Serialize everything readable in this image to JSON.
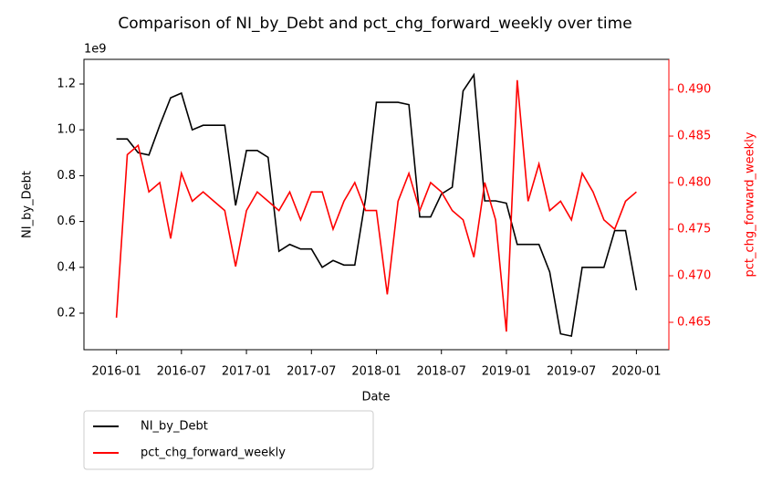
{
  "chart_data": {
    "type": "line",
    "title": "Comparison of NI_by_Debt and pct_chg_forward_weekly over time",
    "x_label": "Date",
    "y_label": "NI_by_Debt",
    "y2_label": "pct_chg_forward_weekly",
    "y_offset_label": "1e9",
    "x": [
      "2016-01",
      "2016-02",
      "2016-03",
      "2016-04",
      "2016-05",
      "2016-06",
      "2016-07",
      "2016-08",
      "2016-09",
      "2016-10",
      "2016-11",
      "2016-12",
      "2017-01",
      "2017-02",
      "2017-03",
      "2017-04",
      "2017-05",
      "2017-06",
      "2017-07",
      "2017-08",
      "2017-09",
      "2017-10",
      "2017-11",
      "2017-12",
      "2018-01",
      "2018-02",
      "2018-03",
      "2018-04",
      "2018-05",
      "2018-06",
      "2018-07",
      "2018-08",
      "2018-09",
      "2018-10",
      "2018-11",
      "2018-12",
      "2019-01",
      "2019-02",
      "2019-03",
      "2019-04",
      "2019-05",
      "2019-06",
      "2019-07",
      "2019-08",
      "2019-09",
      "2019-10",
      "2019-11",
      "2019-12",
      "2020-01"
    ],
    "series": [
      {
        "name": "NI_by_Debt",
        "color": "#000000",
        "axis": "y",
        "values": [
          960000000,
          960000000,
          900000000,
          890000000,
          1020000000,
          1140000000,
          1160000000,
          1000000000,
          1020000000,
          1020000000,
          1020000000,
          670000000,
          910000000,
          910000000,
          880000000,
          470000000,
          500000000,
          480000000,
          480000000,
          400000000,
          430000000,
          410000000,
          410000000,
          700000000,
          1120000000,
          1120000000,
          1120000000,
          1110000000,
          620000000,
          620000000,
          720000000,
          750000000,
          1170000000,
          1240000000,
          690000000,
          690000000,
          680000000,
          500000000,
          500000000,
          500000000,
          380000000,
          110000000,
          100000000,
          400000000,
          400000000,
          400000000,
          560000000,
          560000000,
          300000000
        ]
      },
      {
        "name": "pct_chg_forward_weekly",
        "color": "#ff0000",
        "axis": "y2",
        "values": [
          0.4655,
          0.483,
          0.484,
          0.479,
          0.48,
          0.474,
          0.481,
          0.478,
          0.479,
          0.478,
          0.477,
          0.471,
          0.477,
          0.479,
          0.478,
          0.477,
          0.479,
          0.476,
          0.479,
          0.479,
          0.475,
          0.478,
          0.48,
          0.477,
          0.477,
          0.468,
          0.478,
          0.481,
          0.477,
          0.48,
          0.479,
          0.477,
          0.476,
          0.472,
          0.48,
          0.476,
          0.464,
          0.491,
          0.478,
          0.482,
          0.477,
          0.478,
          0.476,
          0.481,
          0.479,
          0.476,
          0.475,
          0.478,
          0.479
        ]
      }
    ],
    "xlim": [
      "2015-10",
      "2020-04"
    ],
    "xticks": [
      "2016-01",
      "2016-07",
      "2017-01",
      "2017-07",
      "2018-01",
      "2018-07",
      "2019-01",
      "2019-07",
      "2020-01"
    ],
    "ylim": [
      40600000,
      1307600000
    ],
    "yticks": [
      {
        "value": 200000000,
        "label": "0.2"
      },
      {
        "value": 400000000,
        "label": "0.4"
      },
      {
        "value": 600000000,
        "label": "0.6"
      },
      {
        "value": 800000000,
        "label": "0.8"
      },
      {
        "value": 1000000000,
        "label": "1.0"
      },
      {
        "value": 1200000000,
        "label": "1.2"
      }
    ],
    "y2lim": [
      0.46206,
      0.49324
    ],
    "y2ticks": [
      0.465,
      {
        "value": 0.47,
        "label": "0.470"
      },
      0.475,
      {
        "value": 0.48,
        "label": "0.480"
      },
      0.485,
      {
        "value": 0.49,
        "label": "0.490"
      }
    ],
    "y2_color": "#ff0000",
    "legend": "below"
  }
}
